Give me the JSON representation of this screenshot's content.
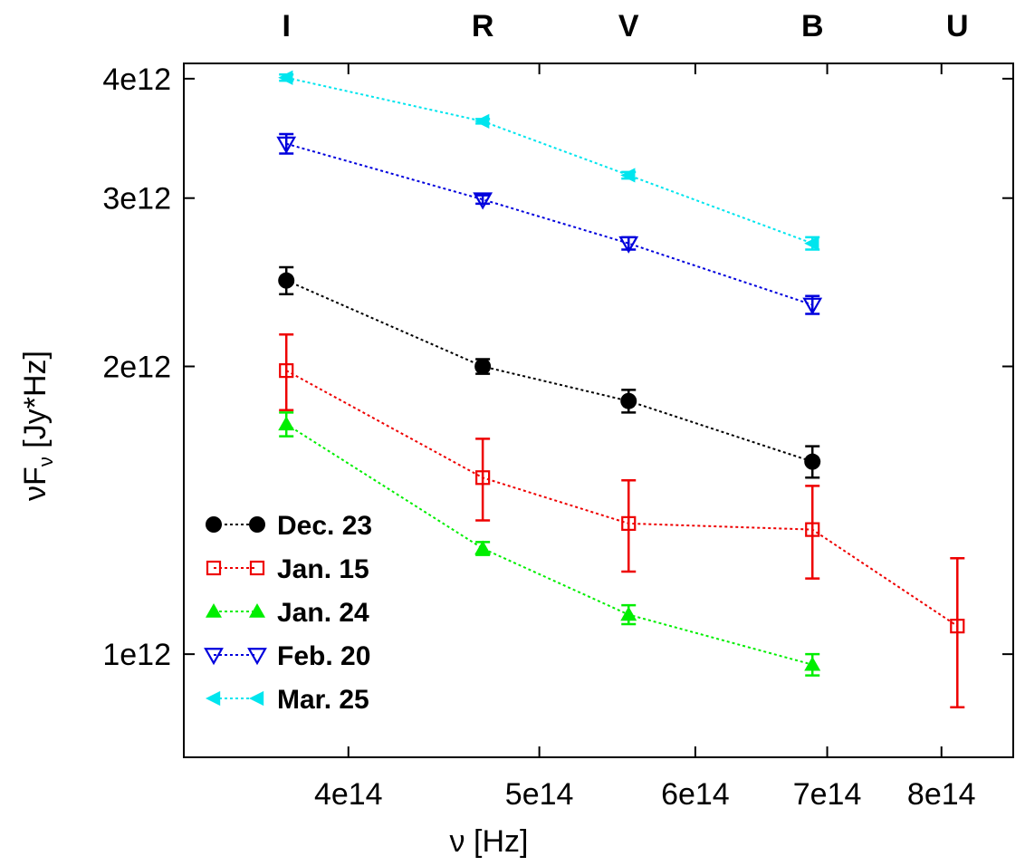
{
  "chart_data": {
    "type": "line",
    "xlabel": "ν [Hz]",
    "ylabel": "νF",
    "ylabel_sub": "ν",
    "ylabel_suffix": " [Jy*Hz]",
    "x_scale": "log",
    "y_scale": "log",
    "xlim": [
      330000000000000.0,
      870000000000000.0
    ],
    "ylim": [
      780000000000.0,
      4150000000000.0
    ],
    "grid": false,
    "legend_position": "bottom-left",
    "x_ticks": [
      {
        "value": 400000000000000.0,
        "label": "4e14"
      },
      {
        "value": 500000000000000.0,
        "label": "5e14"
      },
      {
        "value": 600000000000000.0,
        "label": "6e14"
      },
      {
        "value": 700000000000000.0,
        "label": "7e14"
      },
      {
        "value": 800000000000000.0,
        "label": "8e14"
      }
    ],
    "y_ticks": [
      {
        "value": 1000000000000.0,
        "label": "1e12"
      },
      {
        "value": 2000000000000.0,
        "label": "2e12"
      },
      {
        "value": 3000000000000.0,
        "label": "3e12"
      },
      {
        "value": 4000000000000.0,
        "label": "4e12"
      }
    ],
    "band_labels": [
      {
        "label": "I",
        "x": 372000000000000.0
      },
      {
        "label": "R",
        "x": 468000000000000.0
      },
      {
        "label": "V",
        "x": 555000000000000.0
      },
      {
        "label": "B",
        "x": 688000000000000.0
      },
      {
        "label": "U",
        "x": 815000000000000.0
      }
    ],
    "series": [
      {
        "name": "Dec. 23",
        "color": "#000000",
        "marker": "circle-filled",
        "x": [
          372000000000000.0,
          468000000000000.0,
          555000000000000.0,
          688000000000000.0
        ],
        "y": [
          2460000000000.0,
          2000000000000.0,
          1840000000000.0,
          1590000000000.0
        ],
        "err": [
          80000000000.0,
          35000000000.0,
          50000000000.0,
          60000000000.0
        ]
      },
      {
        "name": "Jan. 15",
        "color": "#ee0000",
        "marker": "square-open",
        "x": [
          372000000000000.0,
          468000000000000.0,
          555000000000000.0,
          688000000000000.0,
          815000000000000.0
        ],
        "y": [
          1980000000000.0,
          1530000000000.0,
          1370000000000.0,
          1350000000000.0,
          1070000000000.0
        ],
        "err": [
          180000000000.0,
          150000000000.0,
          150000000000.0,
          150000000000.0,
          190000000000.0
        ]
      },
      {
        "name": "Jan. 24",
        "color": "#00ee00",
        "marker": "triangle-up-filled",
        "x": [
          372000000000000.0,
          468000000000000.0,
          555000000000000.0,
          688000000000000.0
        ],
        "y": [
          1740000000000.0,
          1290000000000.0,
          1100000000000.0,
          975000000000.0
        ],
        "err": [
          50000000000.0,
          20000000000.0,
          25000000000.0,
          25000000000.0
        ]
      },
      {
        "name": "Feb. 20",
        "color": "#0000dd",
        "marker": "triangle-down-open",
        "x": [
          372000000000000.0,
          468000000000000.0,
          555000000000000.0,
          688000000000000.0
        ],
        "y": [
          3420000000000.0,
          2990000000000.0,
          2690000000000.0,
          2320000000000.0
        ],
        "err": [
          80000000000.0,
          30000000000.0,
          40000000000.0,
          50000000000.0
        ]
      },
      {
        "name": "Mar. 25",
        "color": "#00e5ee",
        "marker": "triangle-left-filled",
        "x": [
          372000000000000.0,
          468000000000000.0,
          555000000000000.0,
          688000000000000.0
        ],
        "y": [
          4010000000000.0,
          3610000000000.0,
          3170000000000.0,
          2690000000000.0
        ],
        "err": [
          30000000000.0,
          20000000000.0,
          25000000000.0,
          40000000000.0
        ]
      }
    ]
  }
}
